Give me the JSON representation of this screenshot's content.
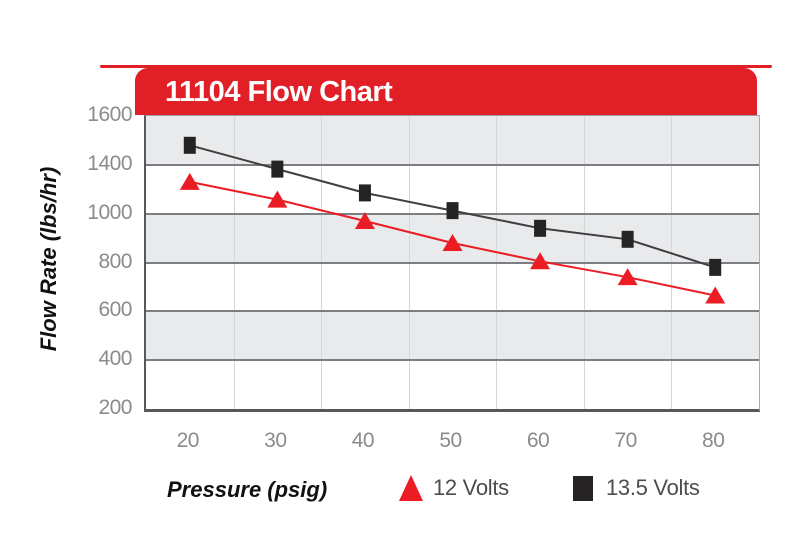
{
  "banner": {
    "title": "11104 Flow Chart",
    "background": "#e01f26",
    "text_color": "#ffffff"
  },
  "axes": {
    "y_title": "Flow Rate (lbs/hr)",
    "x_title": "Pressure (psig)"
  },
  "legend": [
    {
      "label": "12 Volts",
      "marker": "triangle",
      "color": "#ec1c24"
    },
    {
      "label": "13.5 Volts",
      "marker": "square",
      "color": "#262324"
    }
  ],
  "chart_data": {
    "type": "line",
    "title": "11104 Flow Chart",
    "xlabel": "Pressure (psig)",
    "ylabel": "Flow Rate (lbs/hr)",
    "categories": [
      20,
      30,
      40,
      50,
      60,
      70,
      80
    ],
    "x_tick_labels": [
      "20",
      "30",
      "40",
      "50",
      "60",
      "70",
      "80"
    ],
    "y_tick_labels": [
      "1600",
      "1400",
      "1000",
      "800",
      "600",
      "400",
      "200"
    ],
    "series": [
      {
        "name": "12 Volts",
        "marker": "triangle",
        "color": "#ec1c24",
        "values": [
          1260,
          1115,
          970,
          880,
          805,
          740,
          665
        ]
      },
      {
        "name": "13.5 Volts",
        "marker": "square",
        "color": "#262324",
        "line_color": "#3f3f41",
        "values": [
          1480,
          1365,
          1170,
          1025,
          940,
          895,
          780
        ]
      }
    ],
    "grid": true,
    "legend_position": "bottom",
    "band_colors": [
      "#e9eaeb",
      "#ffffff"
    ],
    "accent_color": "#e01f26"
  }
}
